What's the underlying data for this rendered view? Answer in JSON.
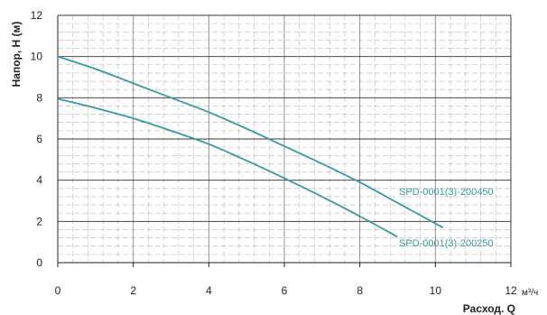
{
  "chart_data": {
    "type": "line",
    "xlabel": "Расход. Q",
    "xunit": "м³/ч",
    "ylabel": "Напор, Н (м)",
    "xlim": [
      0,
      12
    ],
    "ylim": [
      0,
      12
    ],
    "x_ticks": [
      0,
      2,
      4,
      6,
      8,
      10,
      12
    ],
    "y_ticks": [
      0,
      2,
      4,
      6,
      8,
      10,
      12
    ],
    "x_tick_labels": [
      "0",
      "2",
      "4",
      "6",
      "8",
      "10",
      "12"
    ],
    "y_tick_labels": [
      "0",
      "2",
      "4",
      "6",
      "8",
      "10",
      "12"
    ],
    "grid": true,
    "line_color": "#3a9a98",
    "series": [
      {
        "name": "SPD-0001(3)-200450",
        "x": [
          0,
          1,
          2,
          3,
          4,
          5,
          6,
          7,
          8,
          9,
          10.2
        ],
        "y": [
          10.0,
          9.4,
          8.7,
          8.0,
          7.3,
          6.5,
          5.65,
          4.8,
          3.9,
          2.9,
          1.7
        ]
      },
      {
        "name": "SPD-0001(3)-200250",
        "x": [
          0,
          1,
          2,
          3,
          4,
          5,
          6,
          7,
          8,
          9
        ],
        "y": [
          7.95,
          7.5,
          7.0,
          6.4,
          5.75,
          4.95,
          4.1,
          3.2,
          2.25,
          1.25
        ]
      }
    ]
  }
}
